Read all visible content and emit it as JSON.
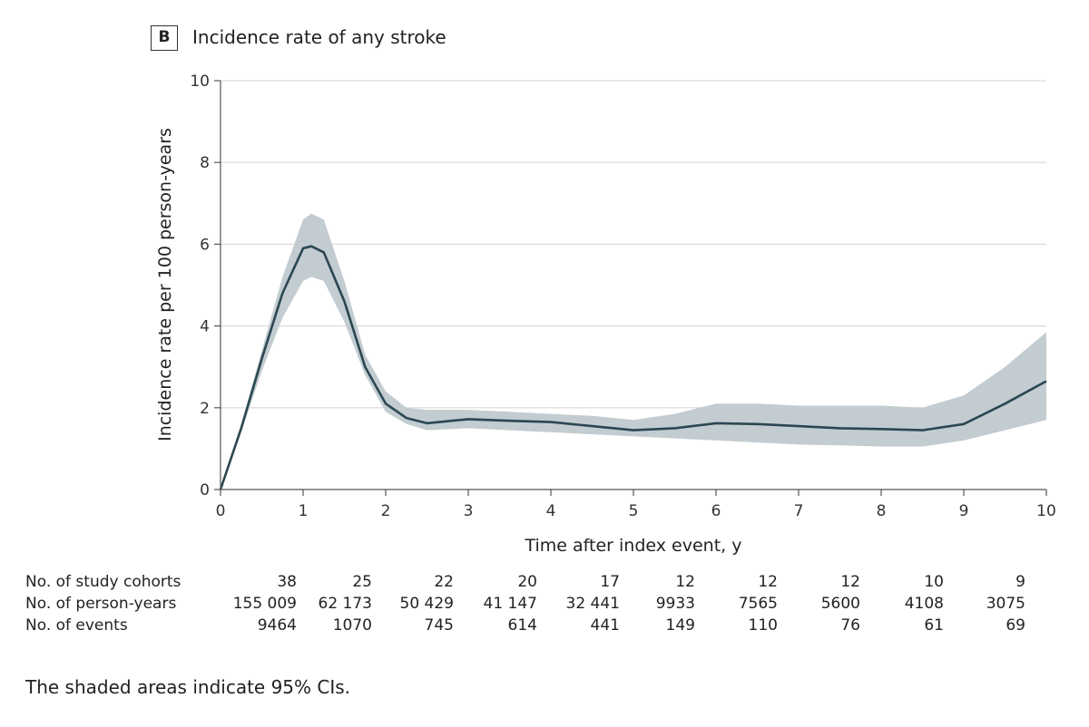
{
  "panel_label": "B",
  "chart_data": {
    "type": "line",
    "title": "Incidence rate of any stroke",
    "xlabel": "Time after index event, y",
    "ylabel": "Incidence rate per 100 person-years",
    "xlim": [
      0,
      10
    ],
    "ylim": [
      0,
      10
    ],
    "xticks": [
      "0",
      "1",
      "2",
      "3",
      "4",
      "5",
      "6",
      "7",
      "8",
      "9",
      "10"
    ],
    "yticks": [
      "0",
      "2",
      "4",
      "6",
      "8",
      "10"
    ],
    "grid": "horizontal",
    "colors": {
      "line": "#2b4753",
      "band": "#c3ccd0",
      "grid": "#d9d9d9"
    },
    "series": [
      {
        "x": [
          0,
          0.25,
          0.5,
          0.75,
          1.0,
          1.1,
          1.25,
          1.5,
          1.75,
          2.0,
          2.25,
          2.5,
          3.0,
          3.5,
          4.0,
          4.5,
          5.0,
          5.5,
          6.0,
          6.5,
          7.0,
          7.5,
          8.0,
          8.5,
          9.0,
          9.5,
          10
        ],
        "y": [
          0,
          1.5,
          3.2,
          4.8,
          5.9,
          5.95,
          5.8,
          4.6,
          3.0,
          2.1,
          1.75,
          1.62,
          1.72,
          1.68,
          1.65,
          1.55,
          1.45,
          1.5,
          1.62,
          1.6,
          1.55,
          1.5,
          1.48,
          1.45,
          1.6,
          2.1,
          2.65
        ],
        "lower": [
          0,
          1.4,
          2.9,
          4.2,
          5.1,
          5.2,
          5.1,
          4.1,
          2.8,
          1.9,
          1.6,
          1.45,
          1.5,
          1.45,
          1.4,
          1.35,
          1.3,
          1.25,
          1.2,
          1.15,
          1.1,
          1.08,
          1.05,
          1.05,
          1.2,
          1.45,
          1.7
        ],
        "upper": [
          0,
          1.6,
          3.4,
          5.2,
          6.6,
          6.75,
          6.6,
          5.1,
          3.3,
          2.4,
          2.0,
          1.95,
          1.95,
          1.9,
          1.85,
          1.8,
          1.7,
          1.85,
          2.1,
          2.1,
          2.05,
          2.05,
          2.05,
          2.0,
          2.3,
          3.0,
          3.85
        ]
      }
    ]
  },
  "risk_table": {
    "rows": [
      {
        "label": "No. of study cohorts",
        "values": [
          "38",
          "25",
          "22",
          "20",
          "17",
          "12",
          "12",
          "12",
          "10",
          "9"
        ]
      },
      {
        "label": "No. of person-years",
        "values": [
          "155 009",
          "62 173",
          "50 429",
          "41 147",
          "32 441",
          "9933",
          "7565",
          "5600",
          "4108",
          "3075"
        ]
      },
      {
        "label": "No. of events",
        "values": [
          "9464",
          "1070",
          "745",
          "614",
          "441",
          "149",
          "110",
          "76",
          "61",
          "69"
        ]
      }
    ]
  },
  "footnote": "The shaded areas indicate 95% CIs."
}
